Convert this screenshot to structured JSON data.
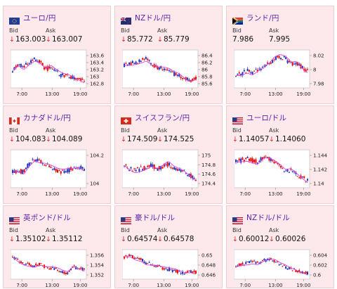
{
  "labels": {
    "bid": "Bid",
    "ask": "Ask"
  },
  "down_arrow": "↓",
  "colors": {
    "up": "#e60000",
    "down": "#1a2fb8",
    "ma": "#e040e0",
    "title": "#5b1fa6",
    "card_bg": "#fde9ec"
  },
  "cards": [
    {
      "pair": "ユーロ/円",
      "flag": "eu-flag-icon",
      "bid": "163.003",
      "ask": "163.007",
      "bid_down": true,
      "ask_down": true,
      "yticks": [
        "163.6",
        "163.4",
        "163.2",
        "163",
        "162.8"
      ],
      "xticks": [
        "7:00",
        "13:00",
        "19:00"
      ]
    },
    {
      "pair": "NZドル/円",
      "flag": "nz-flag-icon",
      "bid": "85.772",
      "ask": "85.779",
      "bid_down": true,
      "ask_down": true,
      "yticks": [
        "86.4",
        "86.2",
        "86",
        "85.8",
        "85.6"
      ],
      "xticks": [
        "7:00",
        "13:00",
        "19:00"
      ]
    },
    {
      "pair": "ランド/円",
      "flag": "za-flag-icon",
      "bid": "7.986",
      "ask": "7.995",
      "bid_down": false,
      "ask_down": false,
      "yticks": [
        "8.02",
        "8",
        "7.98"
      ],
      "xticks": [
        "7:00",
        "13:00",
        "19:00"
      ]
    },
    {
      "pair": "カナダドル/円",
      "flag": "ca-flag-icon",
      "bid": "104.083",
      "ask": "104.089",
      "bid_down": true,
      "ask_down": true,
      "yticks": [
        "104.2",
        "104"
      ],
      "xticks": [
        "7:00",
        "13:00",
        "19:00"
      ]
    },
    {
      "pair": "スイスフラン/円",
      "flag": "ch-flag-icon",
      "bid": "174.509",
      "ask": "174.525",
      "bid_down": true,
      "ask_down": true,
      "yticks": [
        "175",
        "174.8",
        "174.6",
        "174.4"
      ],
      "xticks": [
        "7:00",
        "13:00",
        "19:00"
      ]
    },
    {
      "pair": "ユーロ/ドル",
      "flag": "us-flag-icon",
      "bid": "1.14057",
      "ask": "1.14060",
      "bid_down": true,
      "ask_down": true,
      "yticks": [
        "1.144",
        "1.142",
        "1.14"
      ],
      "xticks": [
        "7:00",
        "13:00",
        "19:00"
      ]
    },
    {
      "pair": "英ポンド/ドル",
      "flag": "us-flag-icon",
      "bid": "1.35102",
      "ask": "1.35112",
      "bid_down": true,
      "ask_down": true,
      "yticks": [
        "1.356",
        "1.354",
        "1.352"
      ],
      "xticks": [
        "7:00",
        "13:00",
        "19:00"
      ]
    },
    {
      "pair": "豪ドル/ドル",
      "flag": "us-flag-icon",
      "bid": "0.64574",
      "ask": "0.64578",
      "bid_down": true,
      "ask_down": true,
      "yticks": [
        "0.65",
        "0.648",
        "0.646"
      ],
      "xticks": [
        "7:00",
        "13:00",
        "19:00"
      ]
    },
    {
      "pair": "NZドル/ドル",
      "flag": "us-flag-icon",
      "bid": "0.60012",
      "ask": "0.60026",
      "bid_down": true,
      "ask_down": true,
      "yticks": [
        "0.604",
        "0.602",
        "0.6"
      ],
      "xticks": [
        "7:00",
        "13:00",
        "19:00"
      ]
    }
  ]
}
